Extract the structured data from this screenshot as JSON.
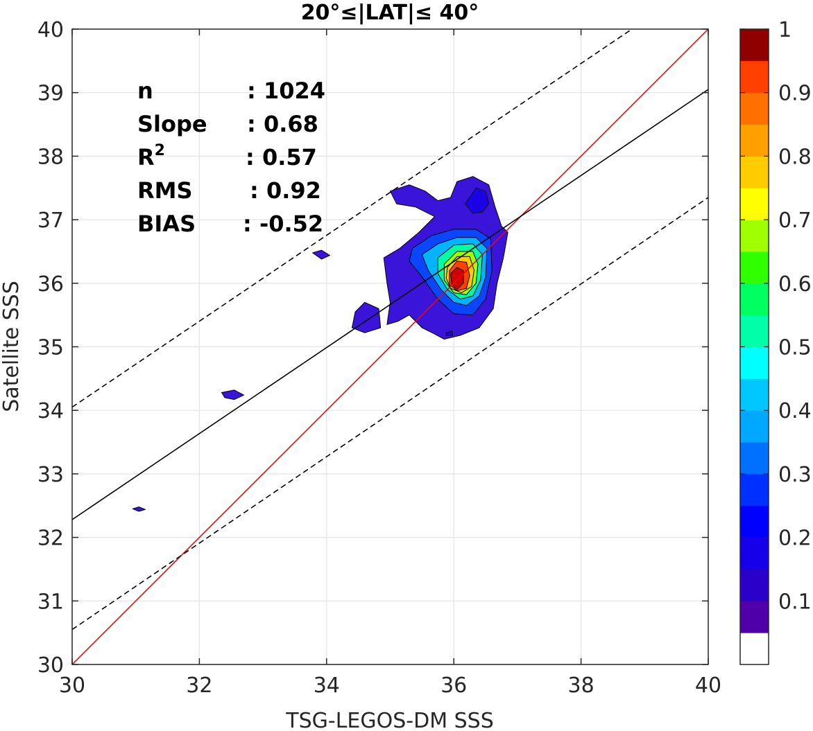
{
  "chart_data": {
    "type": "contour",
    "title": "20°≤|LAT|≤ 40°",
    "xlabel": "TSG-LEGOS-DM SSS",
    "ylabel": "Satellite SSS",
    "xlim": [
      30,
      40
    ],
    "ylim": [
      30,
      40
    ],
    "xticks": [
      "30",
      "32",
      "34",
      "36",
      "38",
      "40"
    ],
    "yticks": [
      "30",
      "31",
      "32",
      "33",
      "34",
      "35",
      "36",
      "37",
      "38",
      "39",
      "40"
    ],
    "grid": true,
    "stats": [
      {
        "label": "n",
        "value": ": 1024"
      },
      {
        "label": "Slope",
        "value": ": 0.68"
      },
      {
        "label": "R",
        "sup": "2",
        "value": ": 0.57"
      },
      {
        "label": "RMS",
        "value": ": 0.92"
      },
      {
        "label": "BIAS",
        "value": ": -0.52"
      }
    ],
    "lines": [
      {
        "name": "one-to-one",
        "color": "#ff0000",
        "style": "solid",
        "x": [
          30,
          40
        ],
        "y": [
          30,
          40
        ]
      },
      {
        "name": "regression",
        "color": "#000000",
        "style": "solid",
        "x": [
          30,
          40
        ],
        "y": [
          32.28,
          39.05
        ]
      },
      {
        "name": "upper-bound",
        "color": "#000000",
        "style": "dashed",
        "x": [
          30,
          38.8
        ],
        "y": [
          34.05,
          40
        ]
      },
      {
        "name": "lower-bound",
        "color": "#000000",
        "style": "dashed",
        "x": [
          30,
          40
        ],
        "y": [
          30.55,
          37.35
        ]
      }
    ],
    "colorbar": {
      "ticks": [
        "0.1",
        "0.2",
        "0.3",
        "0.4",
        "0.5",
        "0.6",
        "0.7",
        "0.8",
        "0.9",
        "1"
      ],
      "range": [
        0,
        1
      ],
      "levels": 20,
      "colors": [
        "#ffffff",
        "#5000a8",
        "#2b00c8",
        "#1600ea",
        "#0000ff",
        "#0030ff",
        "#0070ff",
        "#00a8ff",
        "#00c8ff",
        "#00ffff",
        "#00ffa8",
        "#00ff60",
        "#30ff00",
        "#a0ff00",
        "#ffff00",
        "#ffcc00",
        "#ffa000",
        "#ff7000",
        "#ff4000",
        "#ff0000",
        "#d00000",
        "#900000"
      ]
    },
    "contours": [
      {
        "level": 0.05,
        "color": "#3a14d8",
        "points": [
          [
            35.0,
            37.45
          ],
          [
            35.3,
            37.55
          ],
          [
            35.55,
            37.45
          ],
          [
            35.75,
            37.3
          ],
          [
            35.95,
            37.35
          ],
          [
            36.05,
            37.6
          ],
          [
            36.3,
            37.68
          ],
          [
            36.55,
            37.55
          ],
          [
            36.65,
            37.2
          ],
          [
            36.75,
            36.9
          ],
          [
            36.85,
            36.8
          ],
          [
            36.78,
            36.4
          ],
          [
            36.68,
            36.0
          ],
          [
            36.62,
            35.6
          ],
          [
            36.4,
            35.3
          ],
          [
            36.1,
            35.18
          ],
          [
            35.85,
            35.12
          ],
          [
            35.7,
            35.2
          ],
          [
            35.5,
            35.3
          ],
          [
            35.3,
            35.5
          ],
          [
            35.12,
            35.4
          ],
          [
            34.95,
            35.35
          ],
          [
            35.0,
            35.7
          ],
          [
            34.95,
            36.0
          ],
          [
            34.9,
            36.4
          ],
          [
            35.15,
            36.55
          ],
          [
            35.45,
            36.8
          ],
          [
            35.7,
            37.05
          ],
          [
            35.4,
            37.2
          ],
          [
            35.1,
            37.25
          ]
        ]
      },
      {
        "level": 0.05,
        "color": "#3a14d8",
        "points": [
          [
            34.4,
            35.3
          ],
          [
            34.6,
            35.22
          ],
          [
            34.85,
            35.3
          ],
          [
            34.82,
            35.6
          ],
          [
            34.6,
            35.7
          ],
          [
            34.45,
            35.55
          ]
        ]
      },
      {
        "level": 0.05,
        "color": "#3a14d8",
        "points": [
          [
            33.78,
            36.48
          ],
          [
            33.92,
            36.52
          ],
          [
            34.05,
            36.44
          ],
          [
            33.92,
            36.38
          ]
        ]
      },
      {
        "level": 0.05,
        "color": "#3a14d8",
        "points": [
          [
            32.35,
            34.28
          ],
          [
            32.55,
            34.32
          ],
          [
            32.7,
            34.24
          ],
          [
            32.55,
            34.17
          ],
          [
            32.4,
            34.2
          ]
        ]
      },
      {
        "level": 0.05,
        "color": "#3a14d8",
        "points": [
          [
            30.95,
            32.45
          ],
          [
            31.05,
            32.48
          ],
          [
            31.15,
            32.44
          ],
          [
            31.05,
            32.41
          ]
        ]
      },
      {
        "level": 0.1,
        "color": "#1c00e6",
        "points": [
          [
            36.35,
            37.5
          ],
          [
            36.5,
            37.45
          ],
          [
            36.55,
            37.25
          ],
          [
            36.45,
            37.12
          ],
          [
            36.3,
            37.1
          ],
          [
            36.18,
            37.25
          ]
        ]
      },
      {
        "level": 0.15,
        "color": "#0a46ff",
        "points": [
          [
            35.35,
            36.55
          ],
          [
            35.65,
            36.75
          ],
          [
            36.0,
            36.85
          ],
          [
            36.35,
            36.85
          ],
          [
            36.58,
            36.7
          ],
          [
            36.6,
            36.2
          ],
          [
            36.5,
            35.75
          ],
          [
            36.3,
            35.5
          ],
          [
            36.0,
            35.52
          ],
          [
            35.75,
            35.75
          ],
          [
            35.5,
            36.1
          ],
          [
            35.3,
            36.35
          ]
        ]
      },
      {
        "level": 0.25,
        "color": "#00b4ff",
        "points": [
          [
            35.5,
            36.45
          ],
          [
            35.75,
            36.62
          ],
          [
            36.05,
            36.72
          ],
          [
            36.35,
            36.72
          ],
          [
            36.52,
            36.55
          ],
          [
            36.5,
            36.1
          ],
          [
            36.4,
            35.8
          ],
          [
            36.2,
            35.65
          ],
          [
            36.0,
            35.7
          ],
          [
            35.8,
            35.9
          ],
          [
            35.6,
            36.2
          ]
        ]
      },
      {
        "level": 0.4,
        "color": "#00ffa0",
        "points": [
          [
            35.75,
            36.4
          ],
          [
            36.0,
            36.6
          ],
          [
            36.3,
            36.62
          ],
          [
            36.45,
            36.45
          ],
          [
            36.42,
            36.05
          ],
          [
            36.3,
            35.8
          ],
          [
            36.1,
            35.75
          ],
          [
            35.9,
            35.9
          ],
          [
            35.75,
            36.15
          ]
        ]
      },
      {
        "level": 0.55,
        "color": "#a0ff00",
        "points": [
          [
            35.85,
            36.3
          ],
          [
            36.05,
            36.5
          ],
          [
            36.3,
            36.5
          ],
          [
            36.38,
            36.3
          ],
          [
            36.35,
            36.0
          ],
          [
            36.2,
            35.82
          ],
          [
            36.0,
            35.85
          ],
          [
            35.85,
            36.05
          ]
        ]
      },
      {
        "level": 0.65,
        "color": "#ffcc00",
        "points": [
          [
            35.9,
            36.25
          ],
          [
            36.05,
            36.42
          ],
          [
            36.25,
            36.42
          ],
          [
            36.32,
            36.2
          ],
          [
            36.28,
            35.95
          ],
          [
            36.12,
            35.85
          ],
          [
            35.95,
            35.92
          ],
          [
            35.88,
            36.08
          ]
        ]
      },
      {
        "level": 0.8,
        "color": "#ff4000",
        "points": [
          [
            35.93,
            36.2
          ],
          [
            36.05,
            36.35
          ],
          [
            36.2,
            36.33
          ],
          [
            36.25,
            36.12
          ],
          [
            36.2,
            35.92
          ],
          [
            36.05,
            35.88
          ],
          [
            35.93,
            35.98
          ]
        ]
      },
      {
        "level": 0.92,
        "color": "#d00000",
        "points": [
          [
            35.95,
            36.15
          ],
          [
            36.05,
            36.25
          ],
          [
            36.15,
            36.2
          ],
          [
            36.15,
            36.0
          ],
          [
            36.05,
            35.9
          ],
          [
            35.97,
            35.98
          ]
        ]
      },
      {
        "level": 0.15,
        "color": "#1c00e6",
        "points": [
          [
            35.88,
            35.22
          ],
          [
            35.98,
            35.25
          ],
          [
            35.98,
            35.18
          ],
          [
            35.88,
            35.18
          ]
        ]
      }
    ]
  }
}
